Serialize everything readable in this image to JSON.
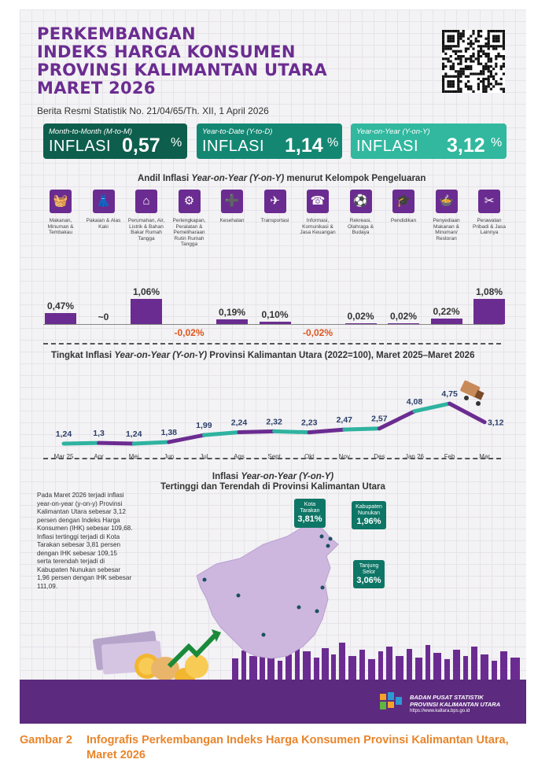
{
  "header": {
    "title_lines": [
      "PERKEMBANGAN",
      "INDEKS HARGA KONSUMEN",
      "PROVINSI KALIMANTAN UTARA",
      "MARET 2026"
    ],
    "subtitle": "Berita Resmi Statistik No. 21/04/65/Th. XII, 1 April 2026"
  },
  "summary": [
    {
      "label": "Month-to-Month (M-to-M)",
      "infl": "INFLASI",
      "value": "0,57",
      "pct": "%",
      "color": "#0e5e4d"
    },
    {
      "label": "Year-to-Date (Y-to-D)",
      "infl": "INFLASI",
      "value": "1,14",
      "pct": "%",
      "color": "#148773"
    },
    {
      "label": "Year-on-Year (Y-on-Y)",
      "infl": "INFLASI",
      "value": "3,12",
      "pct": "%",
      "color": "#31b89f"
    }
  ],
  "andil": {
    "title_pre": "Andil Inflasi ",
    "title_em": "Year-on-Year (Y-on-Y)",
    "title_post": " menurut Kelompok Pengeluaran",
    "categories": [
      {
        "name": "Makanan, Minuman & Tembakau",
        "icon": "food-basket-icon",
        "glyph": "🧺",
        "label": "0,47%",
        "value": 0.47
      },
      {
        "name": "Pakaian & Alas Kaki",
        "icon": "dress-icon",
        "glyph": "👗",
        "label": "~0",
        "value": 0
      },
      {
        "name": "Perumahan, Air, Listrik & Bahan Bakar Rumah Tangga",
        "icon": "house-icon",
        "glyph": "⌂",
        "label": "1,06%",
        "value": 1.06
      },
      {
        "name": "Perlengkapan, Peralatan & Pemeliharaan Rutin Rumah Tangga",
        "icon": "appliance-icon",
        "glyph": "⚙",
        "label": "-0,02%",
        "value": -0.02
      },
      {
        "name": "Kesehatan",
        "icon": "medicine-icon",
        "glyph": "➕",
        "label": "0,19%",
        "value": 0.19
      },
      {
        "name": "Transportasi",
        "icon": "airplane-icon",
        "glyph": "✈",
        "label": "0,10%",
        "value": 0.1
      },
      {
        "name": "Informasi, Komunikasi & Jasa Keuangan",
        "icon": "phone-icon",
        "glyph": "☎",
        "label": "-0,02%",
        "value": -0.02
      },
      {
        "name": "Rekreasi, Olahraga & Budaya",
        "icon": "sport-icon",
        "glyph": "⚽",
        "label": "0,02%",
        "value": 0.02
      },
      {
        "name": "Pendidikan",
        "icon": "graduation-cap-icon",
        "glyph": "🎓",
        "label": "0,02%",
        "value": 0.02
      },
      {
        "name": "Penyediaan Makanan & Minuman/ Restoran",
        "icon": "restaurant-icon",
        "glyph": "🍲",
        "label": "0,22%",
        "value": 0.22
      },
      {
        "name": "Perawatan Pribadi & Jasa Lainnya",
        "icon": "tools-icon",
        "glyph": "✂",
        "label": "1,08%",
        "value": 1.08
      }
    ]
  },
  "trend": {
    "title_pre": "Tingkat Inflasi ",
    "title_em": "Year-on-Year (Y-on-Y)",
    "title_post": " Provinsi Kalimantan Utara (2022=100), Maret 2025–Maret 2026",
    "months": [
      "Mar 25",
      "Apr",
      "Mei",
      "Jun",
      "Jul",
      "Ags",
      "Sept",
      "Okt",
      "Nov",
      "Des",
      "Jan 26",
      "Feb",
      "Mar"
    ],
    "values": [
      1.24,
      1.3,
      1.24,
      1.38,
      1.99,
      2.24,
      2.32,
      2.23,
      2.47,
      2.57,
      4.08,
      4.75,
      3.12
    ],
    "labels": [
      "1,24",
      "1,3",
      "1,24",
      "1,38",
      "1,99",
      "2,24",
      "2,32",
      "2,23",
      "2,47",
      "2,57",
      "4,08",
      "4,75",
      "3,12"
    ]
  },
  "map": {
    "title_pre": "Inflasi ",
    "title_em": "Year-on-Year (Y-on-Y)",
    "title_line2": "Tertinggi dan Terendah di Provinsi Kalimantan Utara",
    "paragraph": "Pada Maret 2026 terjadi inflasi year-on-year (y-on-y) Provinsi Kalimantan Utara sebesar 3,12 persen dengan Indeks Harga Konsumen (IHK) sebesar 109,68. Inflasi tertinggi terjadi di Kota Tarakan sebesar 3,81 persen dengan IHK sebesar 109,15 serta terendah terjadi di Kabupaten Nunukan sebesar 1,96 persen dengan IHK sebesar 111,09.",
    "callouts": [
      {
        "name": "Kota Tarakan",
        "value": "3,81%"
      },
      {
        "name": "Kabupaten Nunukan",
        "value": "1,96%"
      },
      {
        "name": "Tanjung Selor",
        "value": "3,06%"
      }
    ]
  },
  "footer": {
    "org1": "BADAN PUSAT STATISTIK",
    "org2": "PROVINSI KALIMANTAN UTARA",
    "url": "https://www.kaltara.bps.go.id"
  },
  "caption": {
    "number": "Gambar 2",
    "text": "Infografis Perkembangan Indeks Harga Konsumen Provinsi Kalimantan Utara, Maret 2026"
  }
}
